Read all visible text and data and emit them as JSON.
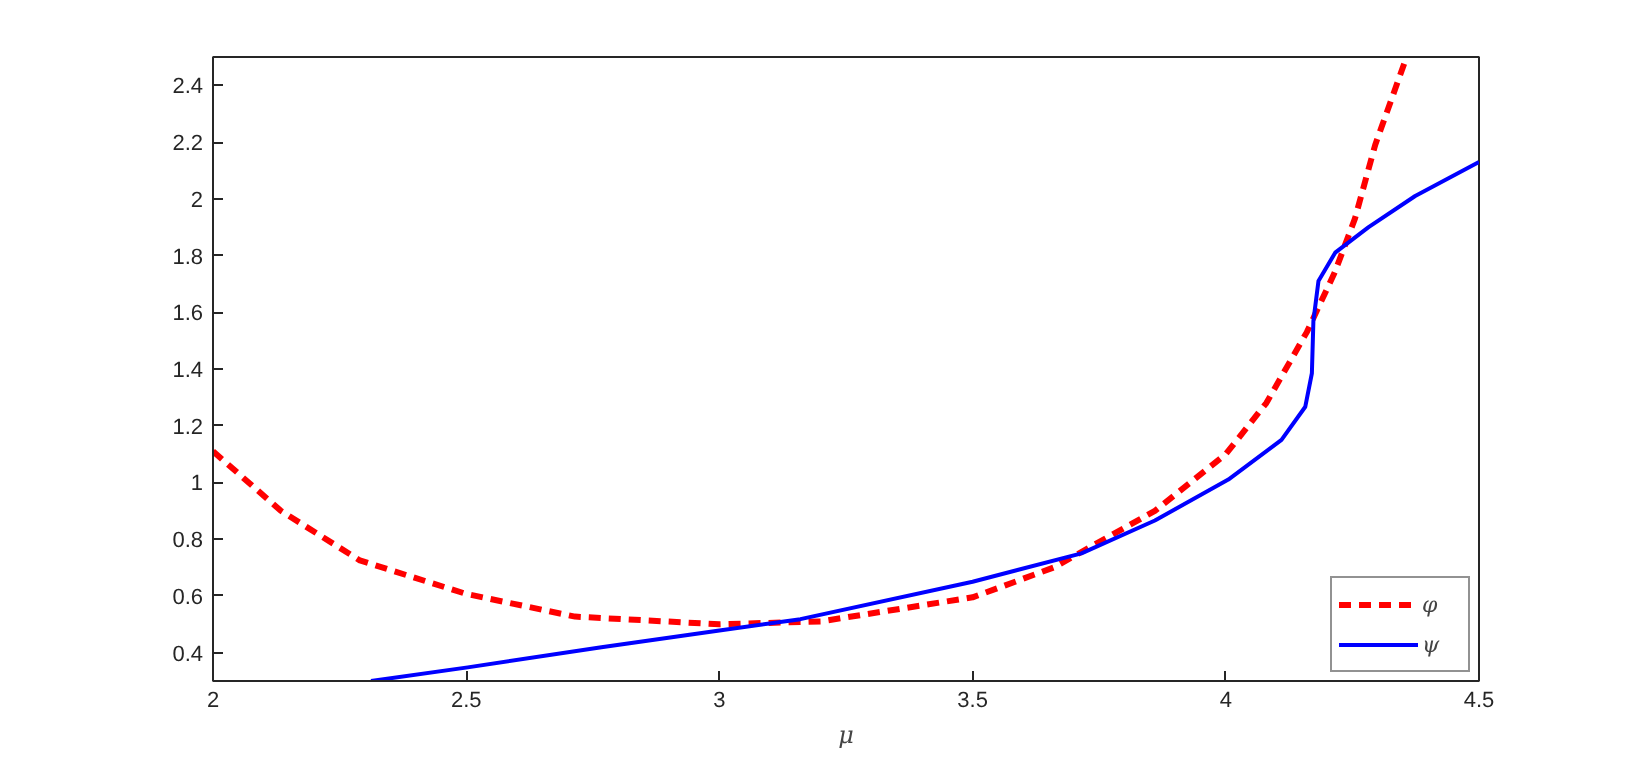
{
  "chart_data": {
    "type": "line",
    "xlabel": "μ",
    "xlim": [
      2,
      4.5
    ],
    "ylim": [
      0.3,
      2.5
    ],
    "xticks": [
      2,
      2.5,
      3,
      3.5,
      4,
      4.5
    ],
    "yticks": [
      0.4,
      0.6,
      0.8,
      1,
      1.2,
      1.4,
      1.6,
      1.8,
      2,
      2.2,
      2.4
    ],
    "grid": false,
    "legend": "bottom right",
    "marker": "none",
    "series": [
      {
        "name": "φ",
        "color": "#ff0000",
        "line_style": "dashed",
        "x": [
          2.0,
          2.134,
          2.29,
          2.5,
          2.715,
          3.0,
          3.2,
          3.5,
          3.66,
          3.86,
          4.0,
          4.08,
          4.16,
          4.215,
          4.255,
          4.295,
          4.355
        ],
        "values": [
          1.11,
          0.9,
          0.725,
          0.607,
          0.527,
          0.5,
          0.51,
          0.595,
          0.7,
          0.9,
          1.1,
          1.28,
          1.53,
          1.74,
          1.93,
          2.19,
          2.49
        ]
      },
      {
        "name": "ψ",
        "color": "#0000ff",
        "line_style": "solid",
        "x": [
          2.312,
          2.503,
          2.767,
          3.0,
          3.16,
          3.5,
          3.715,
          3.86,
          4.005,
          4.11,
          4.157,
          4.17,
          4.173,
          4.183,
          4.216,
          4.282,
          4.374,
          4.5
        ],
        "values": [
          0.3,
          0.348,
          0.419,
          0.478,
          0.518,
          0.65,
          0.75,
          0.866,
          1.01,
          1.15,
          1.267,
          1.385,
          1.57,
          1.71,
          1.81,
          1.9,
          2.01,
          2.13
        ]
      }
    ]
  }
}
